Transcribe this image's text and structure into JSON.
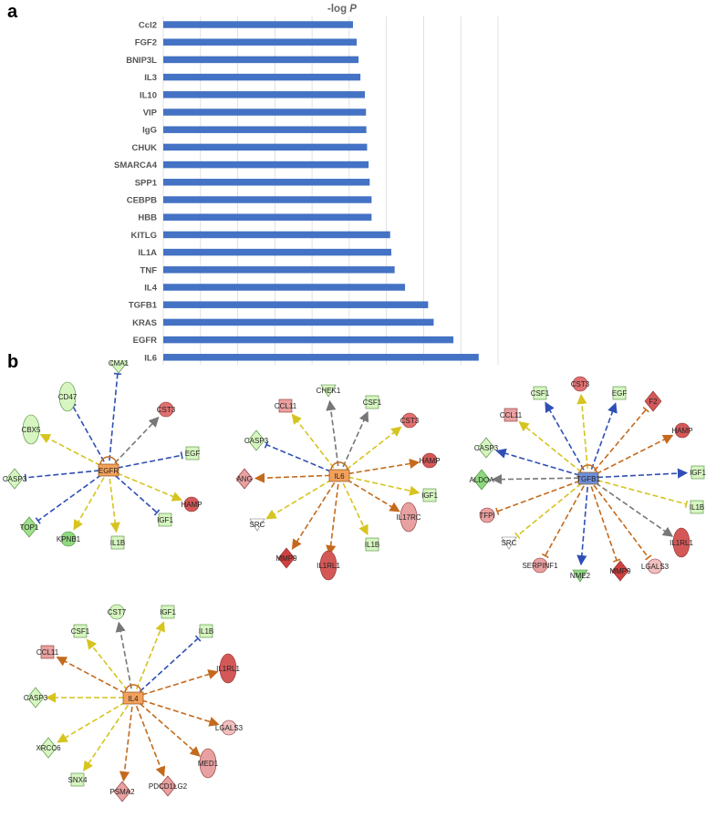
{
  "panels": {
    "a": "a",
    "b": "b"
  },
  "chart_data": {
    "type": "bar",
    "orientation": "horizontal",
    "title": "-log P",
    "categories": [
      "Ccl2",
      "FGF2",
      "BNIP3L",
      "IL3",
      "IL10",
      "VIP",
      "IgG",
      "CHUK",
      "SMARCA4",
      "SPP1",
      "CEBPB",
      "HBB",
      "KITLG",
      "IL1A",
      "TNF",
      "IL4",
      "TGFB1",
      "KRAS",
      "EGFR",
      "IL6"
    ],
    "values": [
      5.1,
      5.2,
      5.25,
      5.3,
      5.42,
      5.45,
      5.46,
      5.48,
      5.52,
      5.55,
      5.6,
      5.6,
      6.1,
      6.13,
      6.22,
      6.5,
      7.12,
      7.27,
      7.8,
      8.48
    ],
    "xlim": [
      0,
      9
    ],
    "xticks": [
      "0",
      "1",
      "2",
      "3",
      "4",
      "5",
      "6",
      "7",
      "8",
      "9"
    ],
    "grid": "vertical",
    "bar_color": "#4472c4"
  },
  "networks": [
    {
      "center": "EGFR",
      "center_color": "#f3a05a",
      "nodes": [
        {
          "label": "CD47",
          "shape": "ellipse",
          "fill": "#d6f5c0"
        },
        {
          "label": "CMA1",
          "shape": "diamond",
          "fill": "#d6f5c0"
        },
        {
          "label": "CST3",
          "shape": "circle",
          "fill": "#e07070"
        },
        {
          "label": "CBX5",
          "shape": "ellipse",
          "fill": "#d6f5c0"
        },
        {
          "label": "EGF",
          "shape": "square",
          "fill": "#d6f5c0"
        },
        {
          "label": "CASP3",
          "shape": "diamond",
          "fill": "#d6f5c0"
        },
        {
          "label": "HAMP",
          "shape": "circle",
          "fill": "#d45858"
        },
        {
          "label": "TOP1",
          "shape": "diamond",
          "fill": "#9fe08a"
        },
        {
          "label": "IGF1",
          "shape": "square",
          "fill": "#d6f5c0"
        },
        {
          "label": "KPNB1",
          "shape": "circle",
          "fill": "#8fd880"
        },
        {
          "label": "IL1B",
          "shape": "square",
          "fill": "#d6f5c0"
        }
      ]
    },
    {
      "center": "IL6",
      "center_color": "#f3a05a",
      "nodes": [
        {
          "label": "CHEK1",
          "shape": "triangle",
          "fill": "#d6f5c0"
        },
        {
          "label": "CCL11",
          "shape": "square",
          "fill": "#e8a0a0"
        },
        {
          "label": "CSF1",
          "shape": "square",
          "fill": "#d6f5c0"
        },
        {
          "label": "CST3",
          "shape": "circle",
          "fill": "#e07070"
        },
        {
          "label": "CASP3",
          "shape": "diamond",
          "fill": "#d6f5c0"
        },
        {
          "label": "HAMP",
          "shape": "circle",
          "fill": "#d45858"
        },
        {
          "label": "ANG",
          "shape": "diamond",
          "fill": "#e8a0a0"
        },
        {
          "label": "IGF1",
          "shape": "square",
          "fill": "#d6f5c0"
        },
        {
          "label": "SRC",
          "shape": "triangle",
          "fill": "#ffffff"
        },
        {
          "label": "IL17RC",
          "shape": "ellipse",
          "fill": "#e8a0a0"
        },
        {
          "label": "MMP9",
          "shape": "diamond",
          "fill": "#d04040"
        },
        {
          "label": "IL1RL1",
          "shape": "ellipse",
          "fill": "#d45858"
        },
        {
          "label": "IL1B",
          "shape": "square",
          "fill": "#d6f5c0"
        }
      ]
    },
    {
      "center": "TGFB1",
      "center_color": "#6d8fd8",
      "nodes": [
        {
          "label": "CSF1",
          "shape": "square",
          "fill": "#d6f5c0"
        },
        {
          "label": "CST3",
          "shape": "circle",
          "fill": "#e07070"
        },
        {
          "label": "EGF",
          "shape": "square",
          "fill": "#d6f5c0"
        },
        {
          "label": "F2",
          "shape": "diamond",
          "fill": "#d45858"
        },
        {
          "label": "CCL11",
          "shape": "square",
          "fill": "#e8a0a0"
        },
        {
          "label": "HAMP",
          "shape": "circle",
          "fill": "#d45858"
        },
        {
          "label": "CASP3",
          "shape": "diamond",
          "fill": "#d6f5c0"
        },
        {
          "label": "IGF1",
          "shape": "square",
          "fill": "#d6f5c0"
        },
        {
          "label": "ALDOA",
          "shape": "diamond",
          "fill": "#8fd880"
        },
        {
          "label": "IL1B",
          "shape": "square",
          "fill": "#d6f5c0"
        },
        {
          "label": "TFPI",
          "shape": "circle",
          "fill": "#e8a0a0"
        },
        {
          "label": "IL1RL1",
          "shape": "ellipse",
          "fill": "#d45858"
        },
        {
          "label": "SRC",
          "shape": "triangle",
          "fill": "#ffffff"
        },
        {
          "label": "LGALS3",
          "shape": "circle",
          "fill": "#f0c0c0"
        },
        {
          "label": "SERPINF1",
          "shape": "circle",
          "fill": "#e8a0a0"
        },
        {
          "label": "NME2",
          "shape": "triangle",
          "fill": "#8fd880"
        },
        {
          "label": "MMP9",
          "shape": "diamond",
          "fill": "#d04040"
        }
      ]
    },
    {
      "center": "IL4",
      "center_color": "#f3a05a",
      "nodes": [
        {
          "label": "CST7",
          "shape": "circle",
          "fill": "#d6f5c0"
        },
        {
          "label": "IGF1",
          "shape": "square",
          "fill": "#d6f5c0"
        },
        {
          "label": "CSF1",
          "shape": "square",
          "fill": "#d6f5c0"
        },
        {
          "label": "IL1B",
          "shape": "square",
          "fill": "#d6f5c0"
        },
        {
          "label": "CCL11",
          "shape": "square",
          "fill": "#e8a0a0"
        },
        {
          "label": "IL1RL1",
          "shape": "ellipse",
          "fill": "#d45858"
        },
        {
          "label": "CASP3",
          "shape": "diamond",
          "fill": "#d6f5c0"
        },
        {
          "label": "LGALS3",
          "shape": "circle",
          "fill": "#f0c0c0"
        },
        {
          "label": "XRCC6",
          "shape": "diamond",
          "fill": "#d6f5c0"
        },
        {
          "label": "MED1",
          "shape": "ellipse",
          "fill": "#e8a0a0"
        },
        {
          "label": "SNX4",
          "shape": "square",
          "fill": "#d6f5c0"
        },
        {
          "label": "PSMA2",
          "shape": "diamond",
          "fill": "#e8a0a0"
        },
        {
          "label": "PDCD1LG2",
          "shape": "diamond",
          "fill": "#e8a0a0"
        }
      ]
    }
  ]
}
